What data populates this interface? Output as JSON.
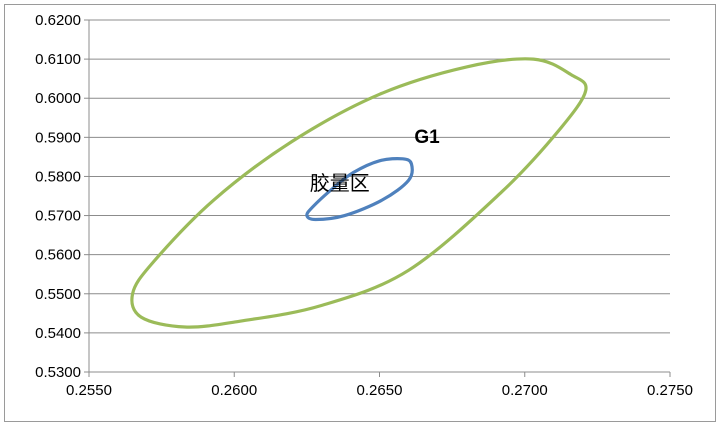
{
  "chart_data": {
    "type": "scatter",
    "title": "",
    "xlabel": "",
    "ylabel": "",
    "xlim": [
      0.255,
      0.275
    ],
    "ylim": [
      0.53,
      0.62
    ],
    "x_ticks": [
      "0.2550",
      "0.2600",
      "0.2650",
      "0.2700",
      "0.2750"
    ],
    "y_ticks": [
      "0.5300",
      "0.5400",
      "0.5500",
      "0.5600",
      "0.5700",
      "0.5800",
      "0.5900",
      "0.6000",
      "0.6100",
      "0.6200"
    ],
    "grid": "horizontal",
    "legend": "none",
    "series": [
      {
        "color": "#9bbb59",
        "points": [
          [
            0.2721,
            0.602
          ],
          [
            0.2716,
            0.606
          ],
          [
            0.2703,
            0.61
          ],
          [
            0.268,
            0.608
          ],
          [
            0.265,
            0.601
          ],
          [
            0.262,
            0.589
          ],
          [
            0.2593,
            0.574
          ],
          [
            0.2572,
            0.558
          ],
          [
            0.2565,
            0.55
          ],
          [
            0.2568,
            0.544
          ],
          [
            0.2583,
            0.5415
          ],
          [
            0.2602,
            0.543
          ],
          [
            0.263,
            0.547
          ],
          [
            0.266,
            0.556
          ],
          [
            0.2692,
            0.576
          ],
          [
            0.2712,
            0.592
          ],
          [
            0.2721,
            0.602
          ]
        ]
      },
      {
        "color": "#4f81bd",
        "points": [
          [
            0.2661,
            0.5832
          ],
          [
            0.2658,
            0.5845
          ],
          [
            0.265,
            0.584
          ],
          [
            0.2641,
            0.581
          ],
          [
            0.2634,
            0.577
          ],
          [
            0.2627,
            0.5722
          ],
          [
            0.2625,
            0.57
          ],
          [
            0.2628,
            0.569
          ],
          [
            0.2638,
            0.57
          ],
          [
            0.2651,
            0.574
          ],
          [
            0.266,
            0.579
          ],
          [
            0.2661,
            0.5832
          ]
        ]
      }
    ],
    "annotations": [
      {
        "text": "G1",
        "x": 0.2662,
        "y": 0.5885
      },
      {
        "text": "胶量区",
        "x": 0.2626,
        "y": 0.5765
      }
    ]
  }
}
